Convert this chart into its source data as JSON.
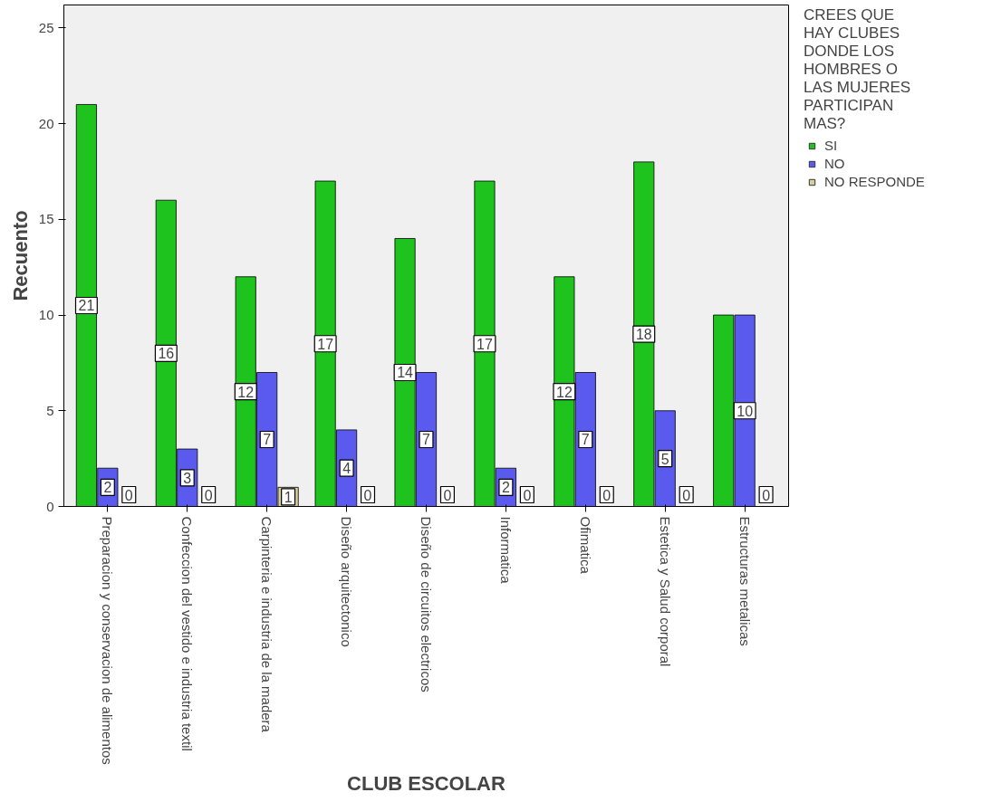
{
  "chart_data": {
    "type": "bar",
    "xlabel": "CLUB ESCOLAR",
    "ylabel": "Recuento",
    "legend_title": "CREES QUE HAY CLUBES DONDE LOS HOMBRES O LAS MUJERES PARTICIPAN MAS?",
    "categories": [
      "Preparacion y conservacion de alimentos",
      "Confeccion del vestido e industria textil",
      "Carpinteria e industria de la madera",
      "Diseño arquitectonico",
      "Diseño de circuitos electricos",
      "Informatica",
      "Ofimatica",
      "Estetica y Salud corporal",
      "Estructuras metalicas"
    ],
    "series": [
      {
        "name": "SI",
        "color": "#1ec31e",
        "values": [
          21,
          16,
          12,
          17,
          14,
          17,
          12,
          18,
          10
        ],
        "value_labels": [
          "21",
          "16",
          "12",
          "17",
          "14",
          "17",
          "12",
          "18",
          null
        ]
      },
      {
        "name": "NO",
        "color": "#5a5aee",
        "values": [
          2,
          3,
          7,
          4,
          7,
          2,
          7,
          5,
          10
        ],
        "value_labels": [
          "2",
          "3",
          "7",
          "4",
          "7",
          "2",
          "7",
          "5",
          "10"
        ]
      },
      {
        "name": "NO RESPONDE",
        "color": "#d8d09c",
        "values": [
          0,
          0,
          1,
          0,
          0,
          0,
          0,
          0,
          0
        ],
        "value_labels": [
          "0",
          "0",
          "1",
          "0",
          "0",
          "0",
          "0",
          "0",
          "0"
        ]
      }
    ],
    "ylim": [
      0,
      26.2
    ],
    "yticks": [
      0,
      5,
      10,
      15,
      20,
      25
    ],
    "grid": false,
    "legend": "right"
  }
}
